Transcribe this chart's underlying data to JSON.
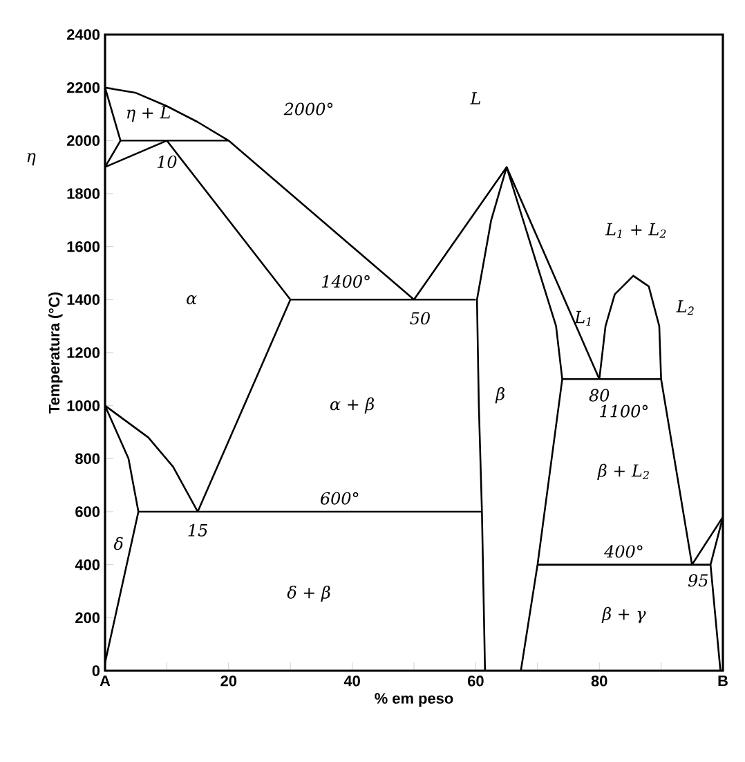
{
  "chart_data": {
    "type": "line",
    "xlabel": "% em peso",
    "ylabel": "Temperatura (°C)",
    "xlim": [
      0,
      100
    ],
    "ylim": [
      0,
      2400
    ],
    "xticks": [
      {
        "value": 0,
        "label": "A"
      },
      {
        "value": 10,
        "label": null
      },
      20,
      {
        "value": 30,
        "label": null
      },
      40,
      {
        "value": 50,
        "label": null
      },
      60,
      {
        "value": 70,
        "label": null
      },
      80,
      {
        "value": 90,
        "label": null
      },
      {
        "value": 100,
        "label": "B"
      }
    ],
    "yticks": [
      0,
      200,
      400,
      600,
      800,
      1000,
      1200,
      1400,
      1600,
      1800,
      2000,
      2200,
      2400
    ],
    "marker": "none",
    "line_style": "solid",
    "series": [
      {
        "color": "#000000",
        "x": [
          0,
          5,
          10,
          15,
          20,
          50
        ],
        "values": [
          2200,
          2180,
          2130,
          2070,
          2000,
          1400
        ]
      },
      {
        "color": "#000000",
        "x": [
          0,
          2.5,
          0
        ],
        "values": [
          2200,
          2000,
          1900
        ]
      },
      {
        "color": "#000000",
        "x": [
          2.5,
          20
        ],
        "values": [
          2000,
          2000
        ]
      },
      {
        "color": "#000000",
        "x": [
          0,
          10,
          30,
          15
        ],
        "values": [
          1900,
          2000,
          1400,
          600
        ]
      },
      {
        "color": "#000000",
        "x": [
          30,
          60
        ],
        "values": [
          1400,
          1400
        ]
      },
      {
        "color": "#000000",
        "x": [
          50,
          65,
          80
        ],
        "values": [
          1400,
          1900,
          1100
        ]
      },
      {
        "color": "#000000",
        "x": [
          65,
          62.5,
          60.2,
          60.5,
          61,
          61.5
        ],
        "values": [
          1900,
          1700,
          1400,
          1000,
          600,
          0
        ]
      },
      {
        "color": "#000000",
        "x": [
          65,
          73,
          74,
          70,
          67.3
        ],
        "values": [
          1900,
          1300,
          1100,
          400,
          0
        ]
      },
      {
        "color": "#000000",
        "x": [
          80,
          81,
          82.5,
          85.5,
          88,
          89.7,
          90,
          95
        ],
        "values": [
          1100,
          1300,
          1420,
          1490,
          1450,
          1300,
          1100,
          400
        ]
      },
      {
        "color": "#000000",
        "x": [
          74,
          90
        ],
        "values": [
          1100,
          1100
        ]
      },
      {
        "color": "#000000",
        "x": [
          70,
          98
        ],
        "values": [
          400,
          400
        ]
      },
      {
        "color": "#000000",
        "x": [
          95,
          100
        ],
        "values": [
          400,
          580
        ]
      },
      {
        "color": "#000000",
        "x": [
          100,
          98,
          99.6
        ],
        "values": [
          580,
          400,
          0
        ]
      },
      {
        "color": "#000000",
        "x": [
          0,
          7,
          11,
          15
        ],
        "values": [
          1000,
          880,
          770,
          600
        ]
      },
      {
        "color": "#000000",
        "x": [
          0,
          3.8,
          5.4,
          0
        ],
        "values": [
          1000,
          800,
          600,
          30
        ]
      },
      {
        "color": "#000000",
        "x": [
          5.4,
          61
        ],
        "values": [
          600,
          600
        ]
      }
    ],
    "annotations": [
      "L",
      "η + L",
      "2000°",
      "η",
      "10",
      "α",
      "1400°",
      "50",
      "α + β",
      "β",
      "L$_{1}$",
      "L$_{2}$",
      "L$_{1}$ + L$_{2}$",
      "80",
      "1100°",
      "β + L$_{2}$",
      "600°",
      "15",
      "δ",
      "δ + β",
      "400°",
      "95",
      "β + γ"
    ]
  }
}
